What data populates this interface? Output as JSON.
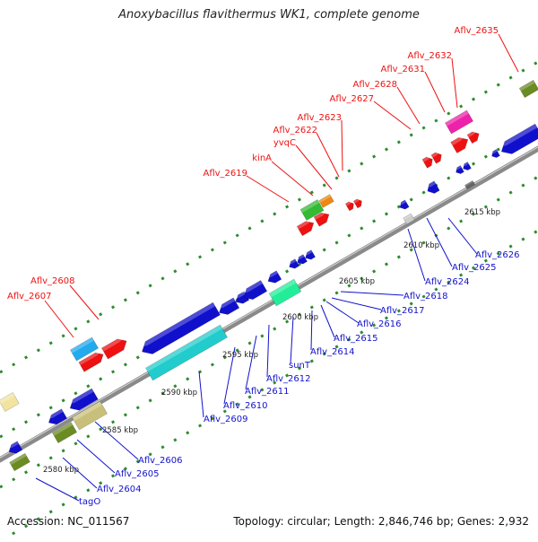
{
  "title": "Anoxybacillus flavithermus WK1, complete genome",
  "footer": {
    "accession": "Accession: NC_011567",
    "summary": "Topology: circular; Length: 2,846,746 bp; Genes: 2,932"
  },
  "colors": {
    "forward_label": "#ee1111",
    "reverse_label": "#1111cc",
    "backbone": "#8a8a8a",
    "tick": "#2e8b2e"
  },
  "ruler": [
    "2580 kbp",
    "2585 kbp",
    "2590 kbp",
    "2595 kbp",
    "2600 kbp",
    "2605 kbp",
    "2610 kbp",
    "2615 kbp"
  ],
  "forward_labels": [
    "Aflv_2607",
    "Aflv_2608",
    "Aflv_2619",
    "kinA",
    "yvqC",
    "Aflv_2622",
    "Aflv_2623",
    "Aflv_2627",
    "Aflv_2628",
    "Aflv_2631",
    "Aflv_2632",
    "Aflv_2635"
  ],
  "reverse_labels": [
    "tagO",
    "Aflv_2604",
    "Aflv_2605",
    "Aflv_2606",
    "Aflv_2609",
    "Aflv_2610",
    "Aflv_2611",
    "Aflv_2612",
    "sunT",
    "Aflv_2614",
    "Aflv_2615",
    "Aflv_2616",
    "Aflv_2617",
    "Aflv_2618",
    "Aflv_2624",
    "Aflv_2625",
    "Aflv_2626"
  ]
}
